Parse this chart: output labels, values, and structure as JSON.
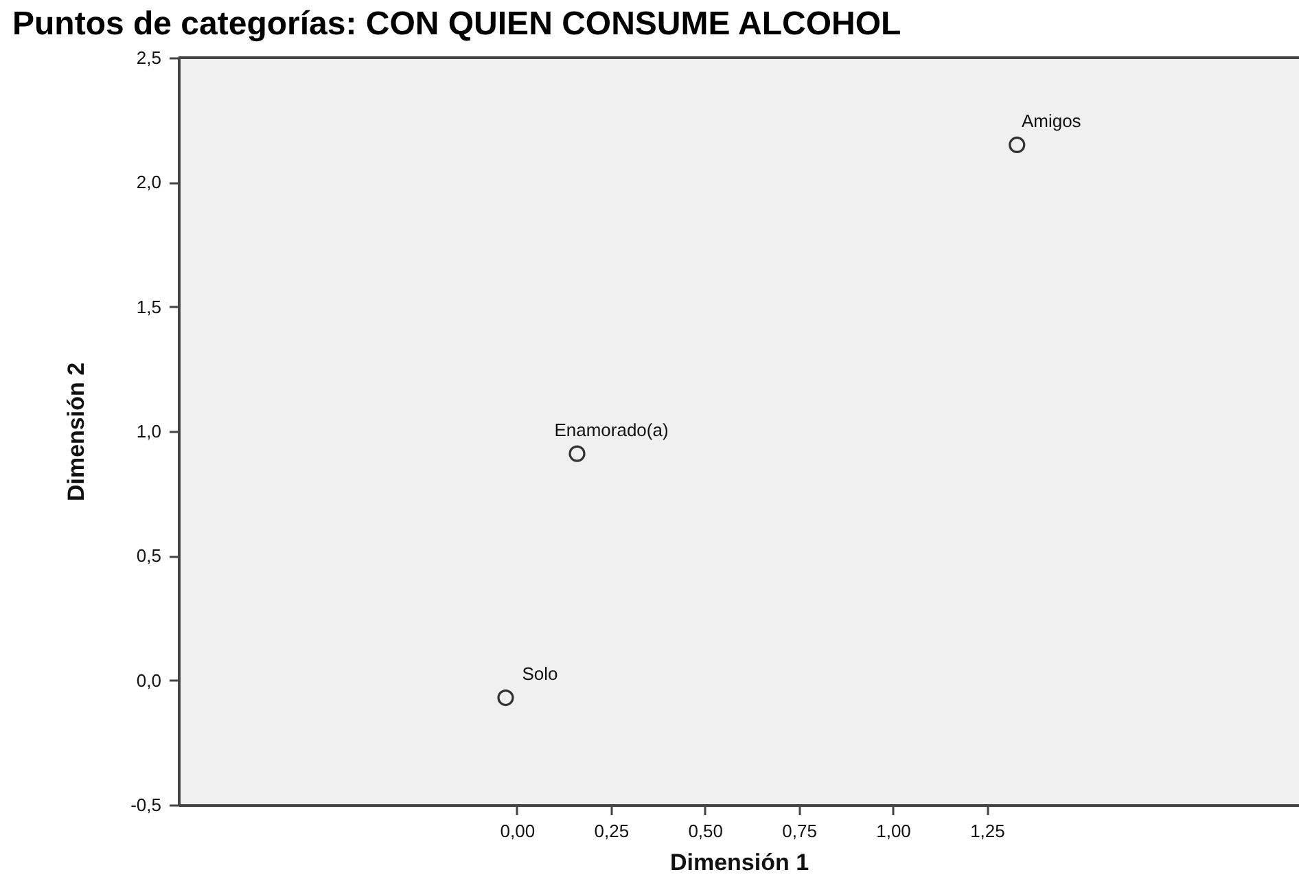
{
  "chart_data": {
    "type": "scatter",
    "title": "Puntos de categorías: CON QUIEN CONSUME ALCOHOL",
    "xlabel": "Dimensión 1",
    "ylabel": "Dimensión 2",
    "series": [
      {
        "name": "Amigos",
        "color": "#333333",
        "x": [
          1.33
        ],
        "values": [
          2.15
        ]
      },
      {
        "name": "Enamorado(a)",
        "color": "#333333",
        "x": [
          0.16
        ],
        "values": [
          0.91
        ]
      },
      {
        "name": "Solo",
        "color": "#333333",
        "x": [
          -0.03
        ],
        "values": [
          -0.07
        ]
      }
    ],
    "xlim": [
      -0.9,
      2.08
    ],
    "ylim": [
      -0.5,
      2.5
    ],
    "xticks": [
      {
        "value": 0,
        "label": "0,00"
      },
      {
        "value": 0.25,
        "label": "0,25"
      },
      {
        "value": 0.5,
        "label": "0,50"
      },
      {
        "value": 0.75,
        "label": "0,75"
      },
      {
        "value": 1,
        "label": "1,00"
      },
      {
        "value": 1.25,
        "label": "1,25"
      }
    ],
    "yticks": [
      {
        "value": -0.5,
        "label": "-0,5"
      },
      {
        "value": 0,
        "label": "0,0"
      },
      {
        "value": 0.5,
        "label": "0,5"
      },
      {
        "value": 1,
        "label": "1,0"
      },
      {
        "value": 1.5,
        "label": "1,5"
      },
      {
        "value": 2,
        "label": "2,0"
      },
      {
        "value": 2.5,
        "label": "2,5"
      }
    ],
    "marker": "circle"
  }
}
